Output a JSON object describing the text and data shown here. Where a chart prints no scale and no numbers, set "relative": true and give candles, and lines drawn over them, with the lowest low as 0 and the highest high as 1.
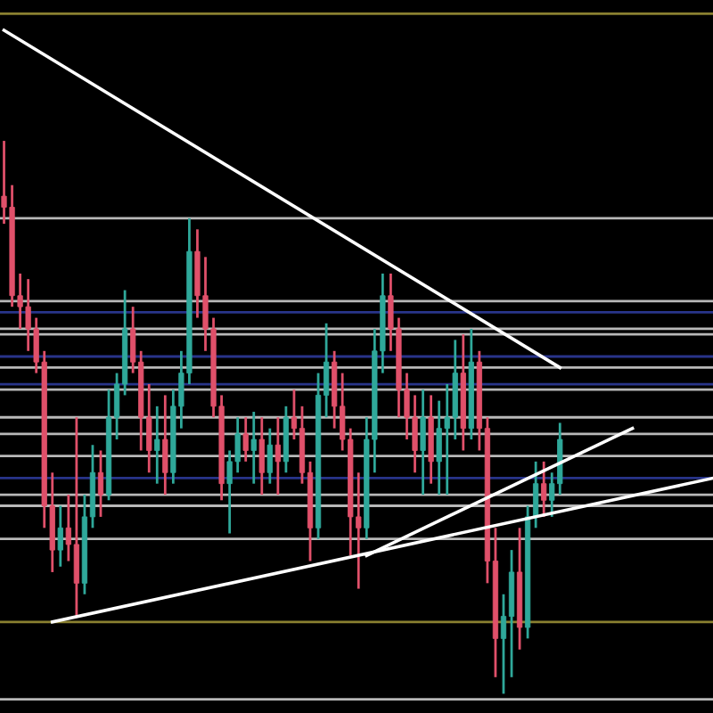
{
  "chart_data": {
    "type": "candlestick",
    "relative": true,
    "categories": [
      null,
      null,
      null,
      null,
      null,
      null,
      null,
      null,
      null,
      null,
      null,
      null,
      null,
      null,
      null,
      null,
      null,
      null,
      null,
      null,
      null,
      null,
      null,
      null,
      null,
      null,
      null,
      null,
      null,
      null,
      null,
      null,
      null,
      null,
      null,
      null,
      null,
      null,
      null,
      null,
      null,
      null,
      null,
      null,
      null,
      null,
      null,
      null,
      null,
      null,
      null,
      null,
      null,
      null,
      null,
      null,
      null,
      null,
      null,
      null,
      null,
      null,
      null,
      null,
      null,
      null,
      null,
      null,
      null,
      null,
      null,
      null,
      null,
      null,
      null,
      null,
      null,
      null,
      null,
      null,
      null,
      null,
      null,
      null,
      null,
      null,
      null,
      null,
      null
    ],
    "ohlc": [
      [
        0.9,
        1.0,
        0.85,
        0.88
      ],
      [
        0.88,
        0.92,
        0.7,
        0.72
      ],
      [
        0.72,
        0.76,
        0.66,
        0.7
      ],
      [
        0.7,
        0.75,
        0.62,
        0.66
      ],
      [
        0.66,
        0.68,
        0.58,
        0.6
      ],
      [
        0.6,
        0.62,
        0.3,
        0.34
      ],
      [
        0.34,
        0.4,
        0.22,
        0.26
      ],
      [
        0.26,
        0.34,
        0.23,
        0.3
      ],
      [
        0.3,
        0.36,
        0.24,
        0.27
      ],
      [
        0.27,
        0.5,
        0.14,
        0.2
      ],
      [
        0.2,
        0.36,
        0.18,
        0.32
      ],
      [
        0.32,
        0.45,
        0.3,
        0.4
      ],
      [
        0.4,
        0.44,
        0.32,
        0.36
      ],
      [
        0.36,
        0.55,
        0.35,
        0.5
      ],
      [
        0.5,
        0.58,
        0.46,
        0.56
      ],
      [
        0.56,
        0.73,
        0.54,
        0.66
      ],
      [
        0.66,
        0.7,
        0.58,
        0.6
      ],
      [
        0.6,
        0.62,
        0.44,
        0.5
      ],
      [
        0.5,
        0.56,
        0.4,
        0.44
      ],
      [
        0.44,
        0.52,
        0.38,
        0.46
      ],
      [
        0.46,
        0.54,
        0.36,
        0.4
      ],
      [
        0.4,
        0.55,
        0.38,
        0.52
      ],
      [
        0.52,
        0.62,
        0.48,
        0.58
      ],
      [
        0.58,
        0.86,
        0.56,
        0.8
      ],
      [
        0.8,
        0.84,
        0.68,
        0.72
      ],
      [
        0.72,
        0.79,
        0.62,
        0.66
      ],
      [
        0.66,
        0.68,
        0.5,
        0.52
      ],
      [
        0.52,
        0.54,
        0.35,
        0.38
      ],
      [
        0.38,
        0.44,
        0.29,
        0.42
      ],
      [
        0.42,
        0.5,
        0.4,
        0.47
      ],
      [
        0.47,
        0.5,
        0.42,
        0.44
      ],
      [
        0.44,
        0.51,
        0.38,
        0.46
      ],
      [
        0.46,
        0.5,
        0.36,
        0.4
      ],
      [
        0.4,
        0.48,
        0.38,
        0.45
      ],
      [
        0.45,
        0.5,
        0.36,
        0.42
      ],
      [
        0.42,
        0.52,
        0.4,
        0.5
      ],
      [
        0.5,
        0.55,
        0.46,
        0.48
      ],
      [
        0.48,
        0.52,
        0.38,
        0.4
      ],
      [
        0.4,
        0.42,
        0.24,
        0.3
      ],
      [
        0.3,
        0.58,
        0.28,
        0.54
      ],
      [
        0.54,
        0.67,
        0.5,
        0.6
      ],
      [
        0.6,
        0.62,
        0.48,
        0.52
      ],
      [
        0.52,
        0.58,
        0.44,
        0.46
      ],
      [
        0.46,
        0.48,
        0.25,
        0.32
      ],
      [
        0.32,
        0.4,
        0.19,
        0.3
      ],
      [
        0.3,
        0.5,
        0.28,
        0.46
      ],
      [
        0.46,
        0.66,
        0.4,
        0.62
      ],
      [
        0.62,
        0.76,
        0.58,
        0.72
      ],
      [
        0.72,
        0.76,
        0.62,
        0.66
      ],
      [
        0.66,
        0.68,
        0.5,
        0.55
      ],
      [
        0.55,
        0.58,
        0.46,
        0.5
      ],
      [
        0.5,
        0.54,
        0.4,
        0.44
      ],
      [
        0.44,
        0.55,
        0.36,
        0.5
      ],
      [
        0.5,
        0.54,
        0.38,
        0.42
      ],
      [
        0.42,
        0.53,
        0.36,
        0.48
      ],
      [
        0.48,
        0.56,
        0.36,
        0.5
      ],
      [
        0.5,
        0.64,
        0.46,
        0.58
      ],
      [
        0.58,
        0.65,
        0.44,
        0.48
      ],
      [
        0.48,
        0.66,
        0.46,
        0.6
      ],
      [
        0.6,
        0.62,
        0.44,
        0.48
      ],
      [
        0.48,
        0.5,
        0.2,
        0.24
      ],
      [
        0.24,
        0.3,
        0.03,
        0.1
      ],
      [
        0.1,
        0.18,
        0.0,
        0.14
      ],
      [
        0.14,
        0.26,
        0.03,
        0.22
      ],
      [
        0.22,
        0.3,
        0.08,
        0.12
      ],
      [
        0.12,
        0.34,
        0.1,
        0.32
      ],
      [
        0.32,
        0.42,
        0.3,
        0.38
      ],
      [
        0.38,
        0.42,
        0.32,
        0.35
      ],
      [
        0.35,
        0.4,
        0.32,
        0.38
      ],
      [
        0.38,
        0.49,
        0.36,
        0.46
      ],
      null,
      null,
      null,
      null,
      null,
      null,
      null,
      null,
      null,
      null,
      null,
      null,
      null,
      null,
      null,
      null,
      null,
      null,
      null
    ],
    "colors": [
      "#e0506a",
      "#e0506a",
      "#e0506a",
      "#e0506a",
      "#e0506a",
      "#e0506a",
      "#e0506a",
      "#2fa89a",
      "#e0506a",
      "#e0506a",
      "#2fa89a",
      "#2fa89a",
      "#e0506a",
      "#2fa89a",
      "#2fa89a",
      "#2fa89a",
      "#e0506a",
      "#e0506a",
      "#e0506a",
      "#2fa89a",
      "#e0506a",
      "#2fa89a",
      "#2fa89a",
      "#2fa89a",
      "#e0506a",
      "#e0506a",
      "#e0506a",
      "#e0506a",
      "#2fa89a",
      "#2fa89a",
      "#e0506a",
      "#2fa89a",
      "#e0506a",
      "#2fa89a",
      "#e0506a",
      "#2fa89a",
      "#e0506a",
      "#e0506a",
      "#e0506a",
      "#2fa89a",
      "#2fa89a",
      "#e0506a",
      "#e0506a",
      "#e0506a",
      "#e0506a",
      "#2fa89a",
      "#2fa89a",
      "#2fa89a",
      "#e0506a",
      "#e0506a",
      "#e0506a",
      "#e0506a",
      "#2fa89a",
      "#e0506a",
      "#2fa89a",
      "#2fa89a",
      "#2fa89a",
      "#e0506a",
      "#2fa89a",
      "#e0506a",
      "#e0506a",
      "#e0506a",
      "#2fa89a",
      "#2fa89a",
      "#e0506a",
      "#2fa89a",
      "#2fa89a",
      "#e0506a",
      "#2fa89a",
      "#2fa89a",
      null,
      null,
      null,
      null,
      null,
      null,
      null,
      null,
      null,
      null,
      null,
      null,
      null,
      null,
      null,
      null,
      null,
      null,
      null
    ],
    "series": [
      {
        "type": "line",
        "color": "#ffffff",
        "values": [
          1.2,
          null,
          null,
          null,
          null,
          null,
          null,
          null,
          null,
          null,
          null,
          null,
          null,
          null,
          null,
          null,
          null,
          null,
          null,
          null,
          null,
          null,
          null,
          null,
          null,
          null,
          null,
          null,
          null,
          null,
          null,
          null,
          null,
          null,
          null,
          null,
          null,
          null,
          null,
          null,
          null,
          null,
          null,
          null,
          null,
          null,
          null,
          null,
          null,
          null,
          null,
          null,
          null,
          null,
          null,
          null,
          null,
          null,
          null,
          null,
          null,
          null,
          null,
          null,
          null,
          null,
          null,
          null,
          null,
          0.59,
          null,
          null,
          null,
          null,
          null,
          null,
          null,
          null,
          null,
          null,
          null,
          null,
          null,
          null,
          null,
          null,
          null,
          null,
          null
        ]
      },
      {
        "type": "line",
        "color": "#ffffff",
        "values": [
          null,
          null,
          null,
          null,
          null,
          null,
          0.13,
          null,
          null,
          null,
          null,
          null,
          null,
          null,
          null,
          null,
          null,
          null,
          null,
          null,
          null,
          null,
          null,
          null,
          null,
          null,
          null,
          null,
          null,
          null,
          null,
          null,
          null,
          null,
          null,
          null,
          null,
          null,
          null,
          null,
          null,
          null,
          null,
          null,
          null,
          null,
          null,
          null,
          null,
          null,
          null,
          null,
          null,
          null,
          null,
          null,
          null,
          null,
          null,
          null,
          null,
          null,
          null,
          null,
          null,
          null,
          null,
          null,
          null,
          null,
          null,
          null,
          null,
          null,
          null,
          null,
          null,
          null,
          null,
          null,
          null,
          null,
          null,
          null,
          null,
          null,
          null,
          null,
          0.39
        ]
      },
      {
        "type": "line",
        "color": "#ffffff",
        "values": [
          null,
          null,
          null,
          null,
          null,
          null,
          null,
          null,
          null,
          null,
          null,
          null,
          null,
          null,
          null,
          null,
          null,
          null,
          null,
          null,
          null,
          null,
          null,
          null,
          null,
          null,
          null,
          null,
          null,
          null,
          null,
          null,
          null,
          null,
          null,
          null,
          null,
          null,
          null,
          null,
          null,
          null,
          null,
          null,
          null,
          0.25,
          null,
          null,
          null,
          null,
          null,
          null,
          null,
          null,
          null,
          null,
          null,
          null,
          null,
          null,
          null,
          null,
          null,
          null,
          null,
          null,
          null,
          null,
          null,
          null,
          null,
          null,
          null,
          null,
          null,
          null,
          null,
          null,
          0.48,
          null,
          null,
          null,
          null,
          null,
          null,
          null,
          null,
          null,
          null
        ]
      }
    ],
    "ref_lines": [
      {
        "axis": "y",
        "value": 1.23,
        "color": "#8a8030"
      },
      {
        "axis": "y",
        "value": 0.86,
        "color": "#b8b8b8"
      },
      {
        "axis": "y",
        "value": 0.71,
        "color": "#b8b8b8"
      },
      {
        "axis": "y",
        "value": 0.69,
        "color": "#28348a"
      },
      {
        "axis": "y",
        "value": 0.66,
        "color": "#b8b8b8"
      },
      {
        "axis": "y",
        "value": 0.65,
        "color": "#b8b8b8"
      },
      {
        "axis": "y",
        "value": 0.61,
        "color": "#28348a"
      },
      {
        "axis": "y",
        "value": 0.59,
        "color": "#b8b8b8"
      },
      {
        "axis": "y",
        "value": 0.56,
        "color": "#28348a"
      },
      {
        "axis": "y",
        "value": 0.55,
        "color": "#b8b8b8"
      },
      {
        "axis": "y",
        "value": 0.5,
        "color": "#b8b8b8"
      },
      {
        "axis": "y",
        "value": 0.47,
        "color": "#b8b8b8"
      },
      {
        "axis": "y",
        "value": 0.43,
        "color": "#b8b8b8"
      },
      {
        "axis": "y",
        "value": 0.39,
        "color": "#28348a"
      },
      {
        "axis": "y",
        "value": 0.36,
        "color": "#b8b8b8"
      },
      {
        "axis": "y",
        "value": 0.34,
        "color": "#b8b8b8"
      },
      {
        "axis": "y",
        "value": 0.28,
        "color": "#b8b8b8"
      },
      {
        "axis": "y",
        "value": 0.13,
        "color": "#8a8030"
      },
      {
        "axis": "y",
        "value": -0.01,
        "color": "#b8b8b8"
      }
    ]
  }
}
